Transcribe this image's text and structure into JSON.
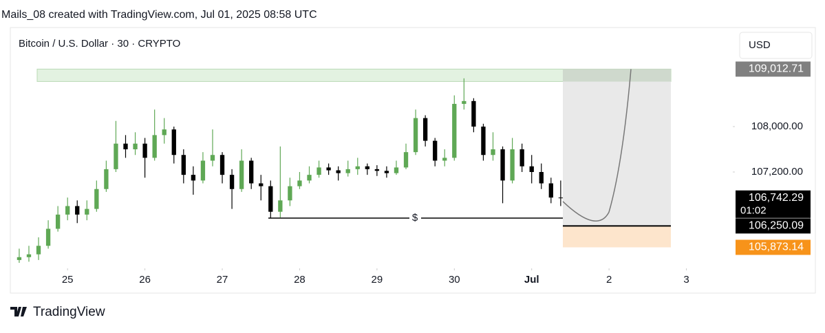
{
  "header": "Mails_08 created with TradingView.com, Jul 01, 2025 08:58 UTC",
  "footer": "TradingView",
  "chart_data": {
    "type": "candlestick",
    "title": "Bitcoin / U.S. Dollar · 30 · CRYPTO",
    "currency": "USD",
    "annotation": "$",
    "up_color": "#5fa855",
    "down_color": "#000000",
    "x": [
      24.375,
      24.5,
      24.625,
      24.75,
      24.875,
      25,
      25.125,
      25.25,
      25.375,
      25.5,
      25.625,
      25.75,
      25.875,
      26,
      26.125,
      26.25,
      26.375,
      26.5,
      26.625,
      26.75,
      26.875,
      27,
      27.125,
      27.25,
      27.375,
      27.5,
      27.625,
      27.75,
      27.875,
      28,
      28.125,
      28.25,
      28.375,
      28.5,
      28.625,
      28.75,
      28.875,
      29,
      29.125,
      29.25,
      29.375,
      29.5,
      29.625,
      29.75,
      29.875,
      30,
      30.125,
      30.25,
      30.375,
      30.5,
      30.625,
      30.75,
      30.875,
      31,
      31.125,
      31.25,
      31.375
    ],
    "open": [
      105650,
      105700,
      105750,
      105900,
      106200,
      106450,
      106600,
      106450,
      106550,
      106900,
      107250,
      107700,
      107600,
      107700,
      107450,
      107850,
      107950,
      107500,
      107150,
      107050,
      107400,
      107500,
      107150,
      106900,
      107400,
      107000,
      106950,
      106500,
      106700,
      106950,
      107050,
      107150,
      107280,
      107230,
      107180,
      107250,
      107300,
      107250,
      107220,
      107180,
      107280,
      107550,
      108150,
      107750,
      107400,
      107450,
      108400,
      108450,
      108000,
      107500,
      107600,
      107050,
      107600,
      107300,
      107200,
      107000,
      106750
    ],
    "high": [
      105850,
      105900,
      106050,
      106350,
      106600,
      106750,
      106700,
      106700,
      107050,
      107400,
      108100,
      107850,
      107900,
      107800,
      108300,
      108150,
      108000,
      107600,
      107300,
      107550,
      107950,
      107550,
      107250,
      107600,
      107450,
      107150,
      107050,
      107650,
      107100,
      107200,
      107300,
      107400,
      107350,
      107300,
      107400,
      107450,
      107350,
      107320,
      107300,
      107400,
      107700,
      108300,
      108200,
      107800,
      107600,
      108550,
      108850,
      108500,
      108050,
      107900,
      107650,
      107800,
      107700,
      107500,
      107350,
      107100,
      107050
    ],
    "low": [
      105600,
      105620,
      105650,
      105850,
      106150,
      106350,
      106300,
      106350,
      106500,
      106850,
      107200,
      107450,
      107500,
      107100,
      107400,
      107700,
      107350,
      107000,
      106800,
      107000,
      107300,
      107000,
      106550,
      106850,
      106900,
      106700,
      106390,
      106400,
      106600,
      106900,
      107000,
      107100,
      107150,
      107050,
      107120,
      107150,
      107150,
      107130,
      107100,
      107150,
      107250,
      107500,
      107650,
      107300,
      107300,
      107400,
      108300,
      107900,
      107400,
      107400,
      106650,
      107000,
      107200,
      107000,
      106900,
      106650,
      106600
    ],
    "close": [
      105700,
      105750,
      105900,
      106200,
      106450,
      106600,
      106450,
      106550,
      106900,
      107250,
      107700,
      107600,
      107700,
      107450,
      107850,
      107950,
      107500,
      107150,
      107050,
      107400,
      107500,
      107150,
      106900,
      107400,
      107000,
      106950,
      106500,
      106700,
      106950,
      107050,
      107150,
      107280,
      107230,
      107180,
      107250,
      107300,
      107250,
      107220,
      107180,
      107280,
      107550,
      108150,
      107750,
      107400,
      107450,
      108400,
      108450,
      108000,
      107500,
      107600,
      107050,
      107600,
      107300,
      107200,
      107000,
      106750,
      106742.29
    ],
    "xlim": [
      24.26,
      33.6
    ],
    "xticks": [
      25,
      26,
      27,
      28,
      29,
      30,
      {
        "value": 31,
        "label": "Jul"
      },
      {
        "value": 32,
        "label": "2"
      },
      {
        "value": 33,
        "label": "3"
      }
    ],
    "ylim": [
      105564,
      109745
    ],
    "yticks": [
      {
        "value": 107200,
        "label": "107,200.00"
      },
      {
        "value": 108000,
        "label": "108,000.00"
      }
    ],
    "price_labels": [
      {
        "value": 109012.71,
        "label": "109,012.71",
        "color": "#808080"
      },
      {
        "value": 106742.29,
        "label": "106,742.29",
        "sublabel": "01:02",
        "color": "#000000"
      },
      {
        "value": 106250.09,
        "label": "106,250.09",
        "color": "#000000"
      },
      {
        "value": 105873.14,
        "label": "105,873.14",
        "color": "#f7931a"
      }
    ]
  }
}
